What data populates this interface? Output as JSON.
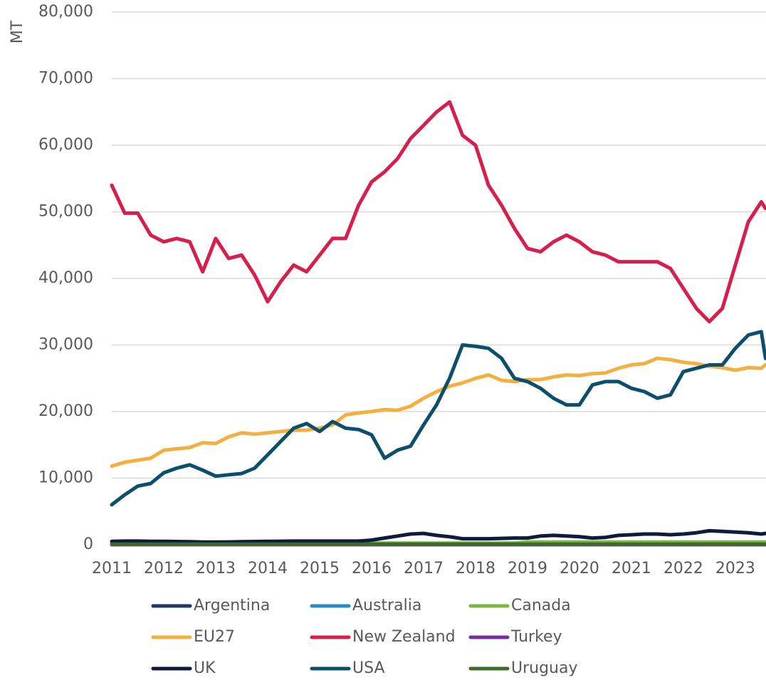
{
  "chart_data": {
    "type": "line",
    "y_label": "MT",
    "x": [
      2011,
      2011.25,
      2011.5,
      2011.75,
      2012,
      2012.25,
      2012.5,
      2012.75,
      2013,
      2013.25,
      2013.5,
      2013.75,
      2014,
      2014.25,
      2014.5,
      2014.75,
      2015,
      2015.25,
      2015.5,
      2015.75,
      2016,
      2016.25,
      2016.5,
      2016.75,
      2017,
      2017.25,
      2017.5,
      2017.75,
      2018,
      2018.25,
      2018.5,
      2018.75,
      2019,
      2019.25,
      2019.5,
      2019.75,
      2020,
      2020.25,
      2020.5,
      2020.75,
      2021,
      2021.25,
      2021.5,
      2021.75,
      2022,
      2022.25,
      2022.5,
      2022.75,
      2023,
      2023.25,
      2023.5,
      2023.58
    ],
    "xlim": [
      2011,
      2023.59
    ],
    "xticks": [
      2011,
      2012,
      2013,
      2014,
      2015,
      2016,
      2017,
      2018,
      2019,
      2020,
      2021,
      2022,
      2023
    ],
    "ylim": [
      0,
      80000
    ],
    "yticks": [
      0,
      {
        "value": 10000,
        "label": "10,000"
      },
      {
        "value": 20000,
        "label": "20,000"
      },
      {
        "value": 30000,
        "label": "30,000"
      },
      {
        "value": 40000,
        "label": "40,000"
      },
      {
        "value": 50000,
        "label": "50,000"
      },
      {
        "value": 60000,
        "label": "60,000"
      },
      {
        "value": 70000,
        "label": "70,000"
      },
      {
        "value": 80000,
        "label": "80,000"
      }
    ],
    "grid": true,
    "legend": "bottom",
    "series": [
      {
        "name": "Argentina",
        "color": "#1f3864",
        "values": [
          100,
          100,
          100,
          100,
          100,
          100,
          100,
          100,
          100,
          100,
          100,
          100,
          100,
          100,
          100,
          100,
          100,
          100,
          100,
          100,
          100,
          100,
          100,
          100,
          100,
          100,
          100,
          100,
          100,
          100,
          100,
          100,
          100,
          100,
          100,
          100,
          100,
          100,
          100,
          100,
          100,
          100,
          100,
          100,
          100,
          100,
          100,
          100,
          100,
          100,
          100,
          100
        ]
      },
      {
        "name": "Australia",
        "color": "#2e8bc0",
        "values": [
          30,
          30,
          30,
          30,
          30,
          30,
          30,
          30,
          30,
          30,
          30,
          30,
          30,
          30,
          30,
          30,
          30,
          30,
          30,
          30,
          30,
          30,
          30,
          30,
          30,
          30,
          30,
          30,
          30,
          30,
          30,
          30,
          30,
          30,
          30,
          30,
          30,
          30,
          30,
          30,
          30,
          30,
          30,
          30,
          30,
          30,
          30,
          30,
          30,
          30,
          30,
          30
        ]
      },
      {
        "name": "Canada",
        "color": "#7ab648",
        "values": [
          150,
          150,
          150,
          150,
          150,
          150,
          150,
          150,
          150,
          150,
          150,
          150,
          150,
          150,
          150,
          150,
          250,
          250,
          250,
          250,
          250,
          250,
          250,
          250,
          250,
          250,
          250,
          250,
          250,
          250,
          250,
          250,
          400,
          400,
          400,
          400,
          400,
          400,
          400,
          400,
          400,
          400,
          400,
          400,
          400,
          400,
          400,
          400,
          400,
          400,
          400,
          400
        ]
      },
      {
        "name": "EU27",
        "color": "#f4b03e",
        "values": [
          11800,
          12400,
          12700,
          13000,
          14200,
          14400,
          14600,
          15300,
          15200,
          16200,
          16800,
          16600,
          16800,
          17000,
          17200,
          17200,
          17500,
          18000,
          19500,
          19800,
          20000,
          20300,
          20200,
          20800,
          22000,
          23000,
          23800,
          24300,
          25000,
          25500,
          24700,
          24500,
          24800,
          24800,
          25200,
          25500,
          25400,
          25700,
          25800,
          26500,
          27000,
          27200,
          28000,
          27800,
          27400,
          27200,
          26800,
          26600,
          26200,
          26600,
          26500,
          27000
        ]
      },
      {
        "name": "New Zealand",
        "color": "#d6204b",
        "values": [
          54000,
          49800,
          49800,
          46500,
          45500,
          46000,
          45500,
          41000,
          46000,
          43000,
          43500,
          40500,
          36500,
          39500,
          42000,
          41000,
          43500,
          46000,
          46000,
          51000,
          54500,
          56000,
          58000,
          61000,
          63000,
          65000,
          66500,
          61500,
          60000,
          54000,
          51000,
          47500,
          44500,
          44000,
          45500,
          46500,
          45500,
          44000,
          43500,
          42500,
          42500,
          42500,
          42500,
          41500,
          38500,
          35500,
          33500,
          35500,
          42000,
          48500,
          51500,
          50500
        ]
      },
      {
        "name": "Turkey",
        "color": "#7030a0",
        "values": [
          10,
          10,
          10,
          10,
          10,
          10,
          10,
          10,
          10,
          10,
          10,
          10,
          10,
          10,
          10,
          10,
          10,
          10,
          10,
          10,
          10,
          10,
          10,
          10,
          10,
          10,
          10,
          10,
          10,
          10,
          10,
          10,
          10,
          10,
          10,
          10,
          10,
          10,
          10,
          10,
          10,
          10,
          10,
          10,
          10,
          10,
          10,
          10,
          10,
          10,
          10,
          10
        ]
      },
      {
        "name": "UK",
        "color": "#0d1b3e",
        "values": [
          500,
          550,
          550,
          500,
          500,
          480,
          450,
          400,
          400,
          420,
          450,
          480,
          500,
          520,
          550,
          550,
          550,
          550,
          550,
          550,
          700,
          1000,
          1300,
          1600,
          1700,
          1400,
          1200,
          900,
          900,
          900,
          950,
          1000,
          1000,
          1300,
          1400,
          1300,
          1200,
          1000,
          1100,
          1400,
          1500,
          1600,
          1600,
          1500,
          1600,
          1800,
          2100,
          2000,
          1900,
          1800,
          1600,
          1700
        ]
      },
      {
        "name": "USA",
        "color": "#0b4f6c",
        "values": [
          6000,
          7500,
          8800,
          9200,
          10800,
          11500,
          12000,
          11200,
          10300,
          10500,
          10700,
          11500,
          13500,
          15500,
          17500,
          18200,
          17000,
          18500,
          17500,
          17300,
          16500,
          13000,
          14200,
          14800,
          18000,
          21000,
          25000,
          30000,
          29800,
          29500,
          28000,
          25000,
          24500,
          23500,
          22000,
          21000,
          21000,
          24000,
          24500,
          24500,
          23500,
          23000,
          22000,
          22500,
          26000,
          26500,
          27000,
          27000,
          29500,
          31500,
          32000,
          28000
        ]
      },
      {
        "name": "Uruguay",
        "color": "#3b6b27",
        "values": [
          80,
          80,
          80,
          80,
          80,
          80,
          80,
          80,
          80,
          80,
          80,
          80,
          80,
          80,
          80,
          80,
          80,
          80,
          80,
          80,
          80,
          80,
          80,
          80,
          80,
          80,
          80,
          80,
          80,
          80,
          80,
          80,
          80,
          80,
          80,
          80,
          80,
          80,
          80,
          80,
          80,
          80,
          80,
          80,
          80,
          80,
          80,
          80,
          80,
          80,
          80,
          80
        ]
      }
    ]
  }
}
